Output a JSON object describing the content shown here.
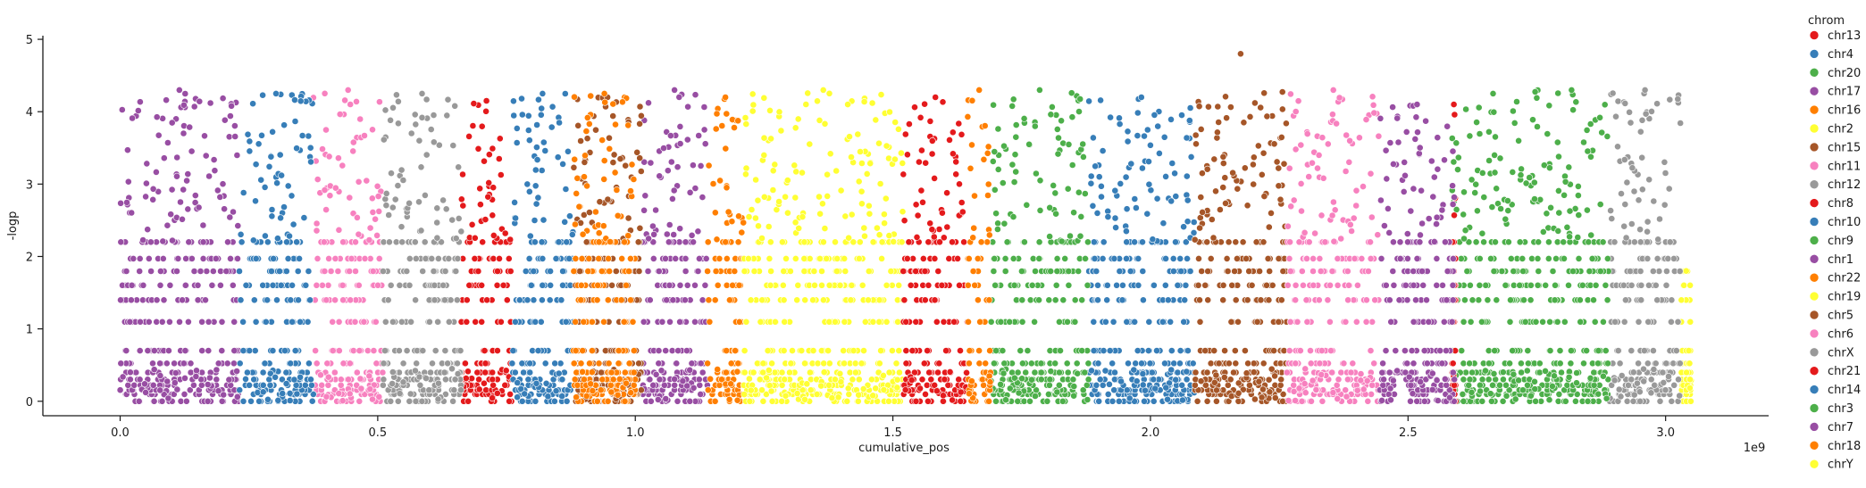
{
  "chart_data": {
    "type": "scatter",
    "title": "",
    "xlabel": "cumulative_pos",
    "ylabel": "-logp",
    "x_offset_label": "1e9",
    "x_unit": 1000000000,
    "xlim": [
      -0.15,
      3.2
    ],
    "ylim": [
      -0.2,
      5.05
    ],
    "x_ticks": [
      0.0,
      0.5,
      1.0,
      1.5,
      2.0,
      2.5,
      3.0
    ],
    "x_tick_labels": [
      "0.0",
      "0.5",
      "1.0",
      "1.5",
      "2.0",
      "2.5",
      "3.0"
    ],
    "y_ticks": [
      0,
      1,
      2,
      3,
      4,
      5
    ],
    "y_tick_labels": [
      "0",
      "1",
      "2",
      "3",
      "4",
      "5"
    ],
    "grid": false,
    "legend_title": "chrom",
    "legend_position": "right, outside plot",
    "point_style": "filled circle with white edge",
    "discrete_levels": [
      0.0,
      0.097,
      0.155,
      0.222,
      0.301,
      0.398,
      0.523,
      0.699,
      1.097,
      1.398,
      1.602,
      1.796,
      1.97,
      2.2
    ],
    "series": [
      {
        "name": "chr13",
        "color": "#e41a1c",
        "x_range": [
          0.662,
          0.76
        ],
        "peak": 4.15
      },
      {
        "name": "chr4",
        "color": "#377eb8",
        "x_range": [
          0.76,
          0.88
        ],
        "peak": 4.25
      },
      {
        "name": "chr20",
        "color": "#4daf4a",
        "x_range": [
          2.585,
          2.745
        ],
        "peak": 4.25
      },
      {
        "name": "chr17",
        "color": "#984ea3",
        "x_range": [
          1.012,
          1.14
        ],
        "peak": 4.3
      },
      {
        "name": "chr16",
        "color": "#ff7f00",
        "x_range": [
          1.14,
          1.21
        ],
        "peak": 4.2
      },
      {
        "name": "chr2",
        "color": "#ffff33",
        "x_range": [
          1.21,
          1.52
        ],
        "peak": 4.3
      },
      {
        "name": "chr15",
        "color": "#a65628",
        "x_range": [
          0.88,
          1.012
        ],
        "peak": 4.2
      },
      {
        "name": "chr11",
        "color": "#f781bf",
        "x_range": [
          0.375,
          0.51
        ],
        "peak": 4.3
      },
      {
        "name": "chr12",
        "color": "#999999",
        "x_range": [
          0.51,
          0.662
        ],
        "peak": 4.25
      },
      {
        "name": "chr8",
        "color": "#e41a1c",
        "x_range": [
          1.52,
          1.645
        ],
        "peak": 4.2
      },
      {
        "name": "chr10",
        "color": "#377eb8",
        "x_range": [
          1.88,
          2.085
        ],
        "peak": 4.2
      },
      {
        "name": "chr9",
        "color": "#4daf4a",
        "x_range": [
          1.69,
          1.88
        ],
        "peak": 4.3
      },
      {
        "name": "chr1",
        "color": "#984ea3",
        "x_range": [
          0.0,
          0.23
        ],
        "peak": 4.3
      },
      {
        "name": "chr22",
        "color": "#ff7f00",
        "x_range": [
          1.645,
          1.69
        ],
        "peak": 4.3
      },
      {
        "name": "chr19",
        "color": "#ffff33",
        "x_range": [
          3.03,
          3.05
        ],
        "peak": 1.8
      },
      {
        "name": "chr5",
        "color": "#a65628",
        "x_range": [
          2.085,
          2.265
        ],
        "peak": 4.8
      },
      {
        "name": "chr6",
        "color": "#f781bf",
        "x_range": [
          2.265,
          2.445
        ],
        "peak": 4.3
      },
      {
        "name": "chrX",
        "color": "#999999",
        "x_range": [
          2.89,
          3.03
        ],
        "peak": 4.3
      },
      {
        "name": "chr21",
        "color": "#e41a1c",
        "x_range": [
          2.59,
          2.585
        ],
        "peak": 4.1
      },
      {
        "name": "chr14",
        "color": "#377eb8",
        "x_range": [
          0.23,
          0.375
        ],
        "peak": 4.25
      },
      {
        "name": "chr3",
        "color": "#4daf4a",
        "x_range": [
          2.745,
          2.89
        ],
        "peak": 4.3
      },
      {
        "name": "chr7",
        "color": "#984ea3",
        "x_range": [
          2.445,
          2.59
        ],
        "peak": 4.1
      },
      {
        "name": "chr18",
        "color": "#ff7f00",
        "x_range": [
          0.88,
          1.0
        ],
        "peak": 4.25
      },
      {
        "name": "chrY",
        "color": "#ffff33",
        "x_range": [
          3.04,
          3.05
        ],
        "peak": 0.7
      }
    ]
  }
}
